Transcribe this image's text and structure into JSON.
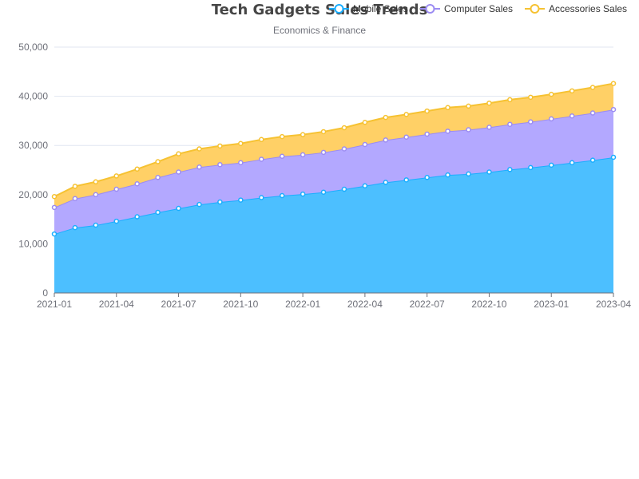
{
  "chart_data": {
    "type": "area",
    "stacked": true,
    "title": "Tech Gadgets Sales Trends",
    "subtitle": "Economics & Finance",
    "legend_position": "top-right",
    "grid": true,
    "x": [
      "2021-01",
      "2021-02",
      "2021-03",
      "2021-04",
      "2021-05",
      "2021-06",
      "2021-07",
      "2021-08",
      "2021-09",
      "2021-10",
      "2021-11",
      "2021-12",
      "2022-01",
      "2022-02",
      "2022-03",
      "2022-04",
      "2022-05",
      "2022-06",
      "2022-07",
      "2022-08",
      "2022-09",
      "2022-10",
      "2022-11",
      "2022-12",
      "2023-01",
      "2023-02",
      "2023-03",
      "2023-04"
    ],
    "x_tick_labels": [
      "2021-01",
      "2021-04",
      "2021-07",
      "2021-10",
      "2022-01",
      "2022-04",
      "2022-07",
      "2022-10",
      "2023-01",
      "2023-04"
    ],
    "y_tick_labels": [
      "0",
      "10,000",
      "20,000",
      "30,000",
      "40,000",
      "50,000"
    ],
    "ylim": [
      0,
      50000
    ],
    "series": [
      {
        "name": "Mobile Sales",
        "color": "#1aaeff",
        "fill": "#4cbfff",
        "values": [
          12000,
          13300,
          13800,
          14600,
          15500,
          16400,
          17200,
          18000,
          18500,
          18900,
          19400,
          19800,
          20100,
          20500,
          21100,
          21800,
          22500,
          23000,
          23500,
          24000,
          24200,
          24600,
          25100,
          25500,
          26000,
          26500,
          27000,
          27600
        ]
      },
      {
        "name": "Computer Sales",
        "color": "#9c8cf2",
        "fill": "#b3a8ff",
        "values": [
          5400,
          5900,
          6200,
          6500,
          6700,
          7100,
          7400,
          7600,
          7600,
          7600,
          7800,
          8000,
          8000,
          8100,
          8200,
          8400,
          8600,
          8700,
          8800,
          8900,
          9000,
          9100,
          9200,
          9300,
          9400,
          9500,
          9600,
          9700
        ]
      },
      {
        "name": "Accessories Sales",
        "color": "#f6c232",
        "fill": "#ffd066",
        "values": [
          2200,
          2500,
          2600,
          2700,
          3000,
          3200,
          3700,
          3700,
          3800,
          3900,
          4000,
          4000,
          4100,
          4200,
          4300,
          4500,
          4600,
          4600,
          4700,
          4800,
          4800,
          4900,
          5000,
          5000,
          5000,
          5100,
          5200,
          5300
        ]
      }
    ]
  }
}
